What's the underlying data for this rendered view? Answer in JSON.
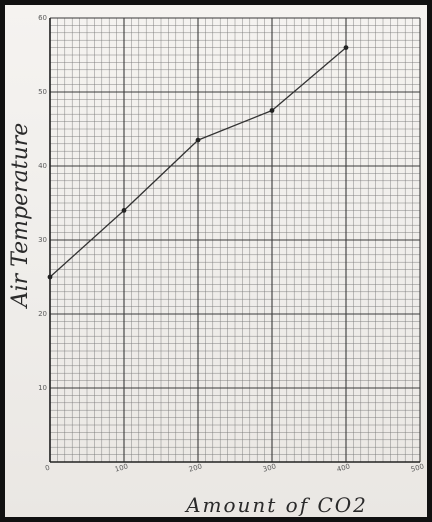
{
  "chart_data": {
    "type": "line",
    "title": "",
    "xlabel": "Amount of CO2",
    "ylabel": "Air Temperature",
    "xlim": [
      0,
      500
    ],
    "ylim": [
      0,
      60
    ],
    "x_ticks": [
      "0",
      "100",
      "200",
      "300",
      "400",
      "500"
    ],
    "y_ticks": [
      "10",
      "20",
      "30",
      "40",
      "50",
      "60"
    ],
    "grid": true,
    "series": [
      {
        "x": [
          0,
          100,
          200,
          300,
          400
        ],
        "y": [
          25,
          34,
          43.5,
          47.5,
          56
        ]
      }
    ],
    "colors": {
      "paper": "#f1efec",
      "grid_minor": "#777777",
      "grid_major": "#3a3a3a",
      "line": "#333333"
    }
  }
}
